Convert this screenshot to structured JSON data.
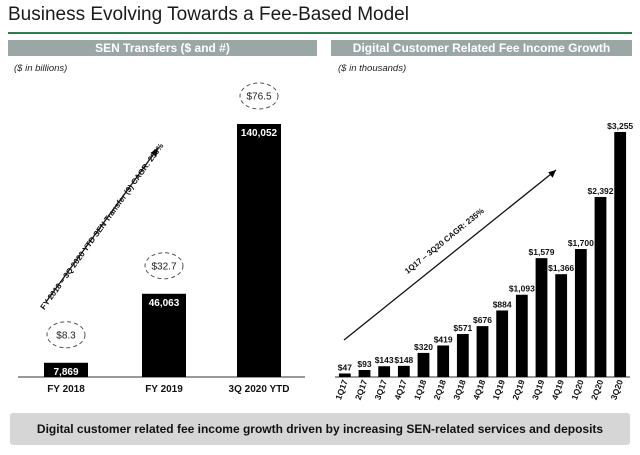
{
  "title": "Business Evolving Towards a Fee-Based Model",
  "footer": "Digital customer related fee income growth driven by increasing SEN-related services and deposits",
  "colors": {
    "bar": "#000000",
    "header": "#9aa7a5",
    "accent_line": "#2e7d4f",
    "footer_bg": "#d6d6d6"
  },
  "chart_data": [
    {
      "type": "bar",
      "title": "SEN Transfers ($ and #)",
      "units": "($ in billions)",
      "categories": [
        "FY 2018",
        "FY 2019",
        "3Q 2020 YTD"
      ],
      "series": [
        {
          "name": "# of SEN Transfers",
          "values": [
            7869,
            46063,
            140052
          ],
          "labels": [
            "7,869",
            "46,063",
            "140,052"
          ]
        },
        {
          "name": "SEN Transfer $ (billions)",
          "values": [
            8.3,
            32.7,
            76.5
          ],
          "labels": [
            "$8.3",
            "$32.7",
            "$76.5"
          ]
        }
      ],
      "annotation": "FY 2018 – 3Q 2020 YTD SEN Transfer ($) CAGR: 256%",
      "ylim": [
        0,
        150000
      ]
    },
    {
      "type": "bar",
      "title": "Digital Customer Related Fee Income Growth",
      "units": "($ in thousands)",
      "categories": [
        "1Q17",
        "2Q17",
        "3Q17",
        "4Q17",
        "1Q18",
        "2Q18",
        "3Q18",
        "4Q18",
        "1Q19",
        "2Q19",
        "3Q19",
        "4Q19",
        "1Q20",
        "2Q20",
        "3Q20"
      ],
      "values": [
        47,
        93,
        143,
        148,
        320,
        419,
        571,
        676,
        884,
        1093,
        1579,
        1366,
        1700,
        2392,
        3255
      ],
      "labels": [
        "$47",
        "$93",
        "$143",
        "$148",
        "$320",
        "$419",
        "$571",
        "$676",
        "$884",
        "$1,093",
        "$1,579",
        "$1,366",
        "$1,700",
        "$2,392",
        "$3,255"
      ],
      "annotation": "1Q17 – 3Q20 CAGR: 235%",
      "ylim": [
        0,
        3300
      ]
    }
  ]
}
